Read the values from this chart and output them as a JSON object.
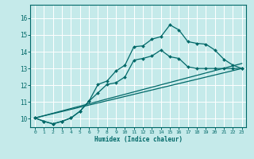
{
  "xlabel": "Humidex (Indice chaleur)",
  "bg_color": "#c5eaea",
  "grid_color": "#ffffff",
  "line_color": "#006868",
  "xlim": [
    -0.5,
    23.5
  ],
  "ylim": [
    9.5,
    16.8
  ],
  "yticks": [
    10,
    11,
    12,
    13,
    14,
    15,
    16
  ],
  "xticks": [
    0,
    1,
    2,
    3,
    4,
    5,
    6,
    7,
    8,
    9,
    10,
    11,
    12,
    13,
    14,
    15,
    16,
    17,
    18,
    19,
    20,
    21,
    22,
    23
  ],
  "line1_x": [
    0,
    1,
    2,
    3,
    4,
    5,
    6,
    7,
    8,
    9,
    10,
    11,
    12,
    13,
    14,
    15,
    16,
    17,
    18,
    19,
    20,
    21,
    22,
    23
  ],
  "line1_y": [
    10.05,
    9.85,
    9.7,
    9.85,
    10.05,
    10.45,
    11.05,
    11.55,
    12.05,
    12.15,
    12.5,
    13.5,
    13.6,
    13.75,
    14.1,
    13.7,
    13.6,
    13.1,
    13.0,
    13.0,
    13.0,
    13.0,
    13.0,
    13.0
  ],
  "line2_x": [
    0,
    1,
    2,
    3,
    4,
    5,
    6,
    7,
    8,
    9,
    10,
    11,
    12,
    13,
    14,
    15,
    16,
    17,
    18,
    19,
    20,
    21,
    22,
    23
  ],
  "line2_y": [
    10.05,
    9.85,
    9.7,
    9.85,
    10.05,
    10.45,
    11.05,
    12.05,
    12.25,
    12.85,
    13.2,
    14.3,
    14.35,
    14.75,
    14.9,
    15.6,
    15.3,
    14.6,
    14.5,
    14.45,
    14.1,
    13.55,
    13.2,
    13.0
  ],
  "line3_x": [
    0,
    23
  ],
  "line3_y": [
    10.05,
    13.0
  ],
  "line4_x": [
    0,
    23
  ],
  "line4_y": [
    10.05,
    13.0
  ],
  "marker_size": 2.0,
  "linewidth": 0.9
}
